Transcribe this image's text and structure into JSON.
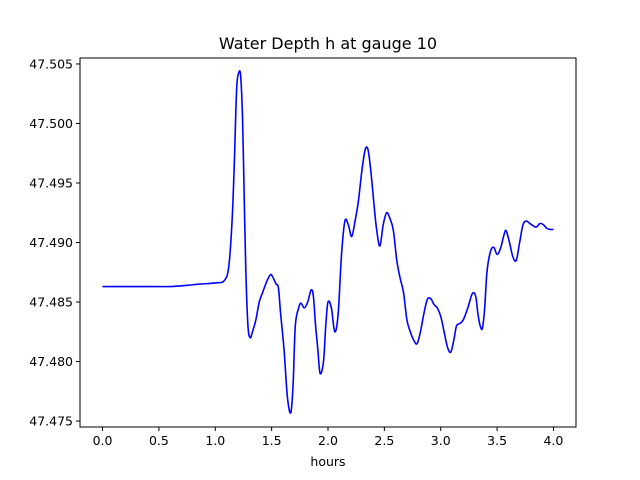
{
  "chart_data": {
    "type": "line",
    "title": "Water Depth h at gauge 10",
    "xlabel": "hours",
    "ylabel": "",
    "xlim": [
      -0.2,
      4.2
    ],
    "ylim": [
      47.4745,
      47.5055
    ],
    "x_ticks": [
      "0.0",
      "0.5",
      "1.0",
      "1.5",
      "2.0",
      "2.5",
      "3.0",
      "3.5",
      "4.0"
    ],
    "y_ticks": [
      "47.475",
      "47.480",
      "47.485",
      "47.490",
      "47.495",
      "47.500",
      "47.505"
    ],
    "grid": false,
    "series": [
      {
        "color": "#0000ff",
        "x": [
          0.0,
          0.2,
          0.4,
          0.6,
          0.75,
          0.85,
          1.0,
          1.08,
          1.12,
          1.15,
          1.17,
          1.19,
          1.21,
          1.225,
          1.24,
          1.25,
          1.27,
          1.29,
          1.31,
          1.33,
          1.36,
          1.39,
          1.42,
          1.46,
          1.49,
          1.51,
          1.54,
          1.56,
          1.58,
          1.61,
          1.64,
          1.67,
          1.69,
          1.71,
          1.74,
          1.76,
          1.79,
          1.82,
          1.85,
          1.87,
          1.89,
          1.91,
          1.93,
          1.96,
          1.98,
          2.0,
          2.03,
          2.06,
          2.09,
          2.12,
          2.15,
          2.18,
          2.21,
          2.24,
          2.27,
          2.3,
          2.33,
          2.355,
          2.38,
          2.41,
          2.43,
          2.46,
          2.49,
          2.52,
          2.55,
          2.58,
          2.61,
          2.64,
          2.67,
          2.7,
          2.73,
          2.76,
          2.79,
          2.82,
          2.85,
          2.88,
          2.91,
          2.94,
          2.97,
          3.0,
          3.03,
          3.06,
          3.09,
          3.12,
          3.14,
          3.17,
          3.2,
          3.24,
          3.28,
          3.31,
          3.33,
          3.35,
          3.37,
          3.39,
          3.41,
          3.44,
          3.47,
          3.5,
          3.53,
          3.56,
          3.58,
          3.61,
          3.64,
          3.67,
          3.7,
          3.73,
          3.76,
          3.79,
          3.82,
          3.85,
          3.88,
          3.91,
          3.94,
          3.97,
          4.0
        ],
        "y": [
          47.4863,
          47.4863,
          47.4863,
          47.4863,
          47.4864,
          47.4865,
          47.4866,
          47.4868,
          47.488,
          47.492,
          47.497,
          47.503,
          47.5043,
          47.504,
          47.501,
          47.497,
          47.488,
          47.483,
          47.482,
          47.4825,
          47.4835,
          47.485,
          47.4858,
          47.4868,
          47.4873,
          47.4871,
          47.4865,
          47.4862,
          47.484,
          47.481,
          47.477,
          47.4757,
          47.478,
          47.483,
          47.4845,
          47.4849,
          47.4845,
          47.485,
          47.486,
          47.4855,
          47.483,
          47.481,
          47.479,
          47.48,
          47.483,
          47.485,
          47.4845,
          47.4825,
          47.484,
          47.489,
          47.4918,
          47.4915,
          47.4905,
          47.4918,
          47.4935,
          47.496,
          47.4978,
          47.4978,
          47.496,
          47.493,
          47.4912,
          47.4897,
          47.4915,
          47.4925,
          47.492,
          47.491,
          47.4885,
          47.487,
          47.4858,
          47.4835,
          47.4825,
          47.4818,
          47.4815,
          47.4825,
          47.484,
          47.4852,
          47.4853,
          47.4848,
          47.4845,
          47.4838,
          47.4825,
          47.4812,
          47.4808,
          47.482,
          47.483,
          47.4832,
          47.4835,
          47.4845,
          47.4857,
          47.4855,
          47.484,
          47.483,
          47.4828,
          47.4845,
          47.4875,
          47.4892,
          47.4896,
          47.489,
          47.4895,
          47.4906,
          47.491,
          47.49,
          47.4888,
          47.4885,
          47.49,
          47.4915,
          47.4918,
          47.4916,
          47.4914,
          47.4913,
          47.4916,
          47.4915,
          47.4912,
          47.4911,
          47.4911
        ]
      }
    ]
  }
}
